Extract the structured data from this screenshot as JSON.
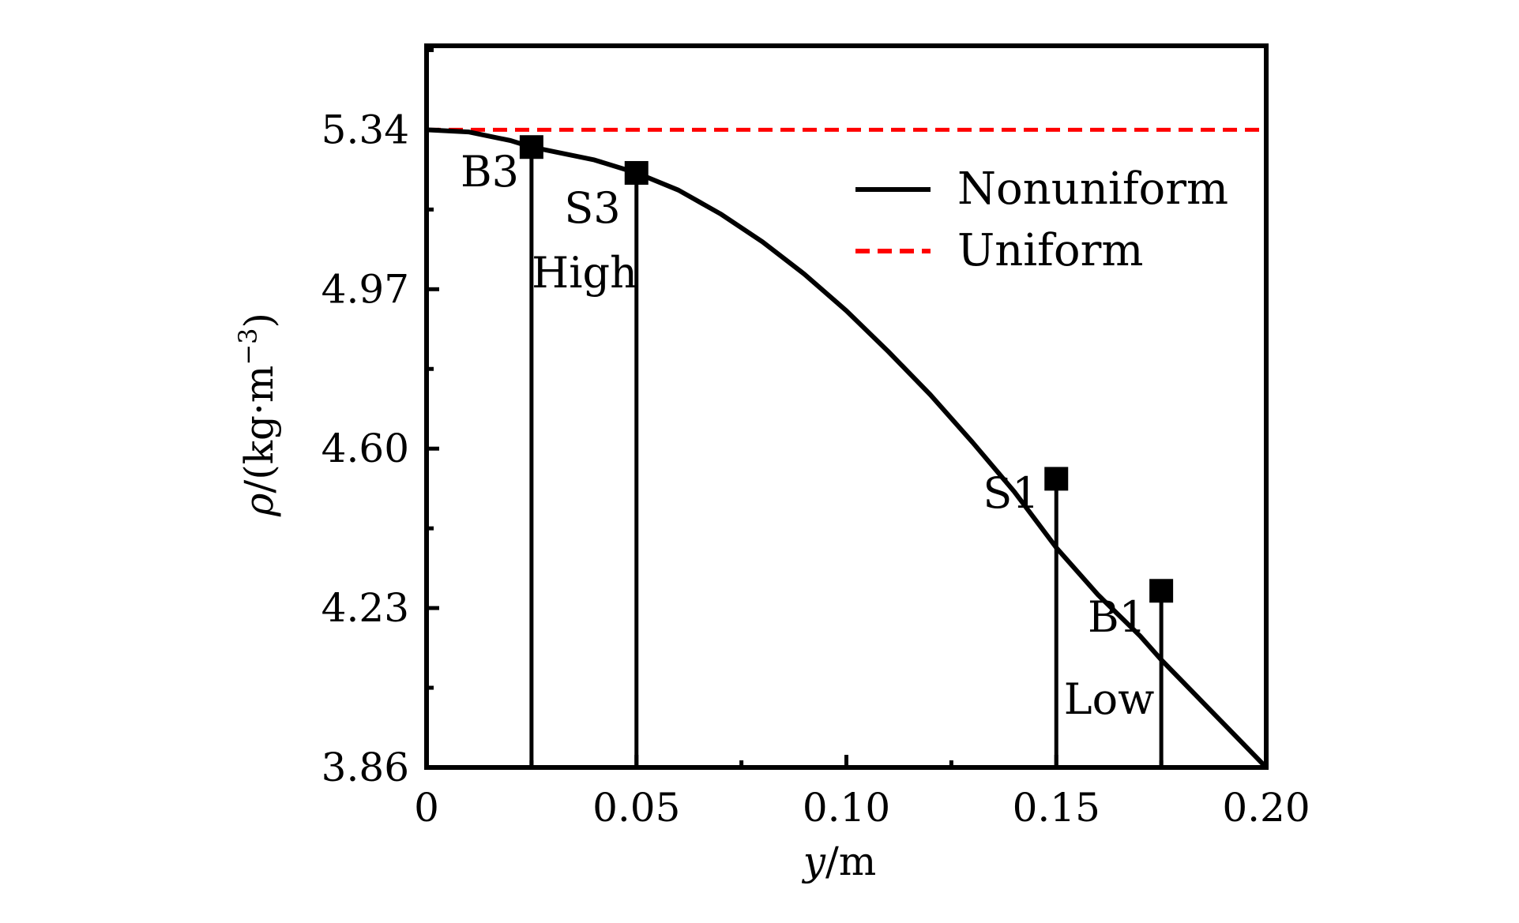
{
  "chart_data": {
    "type": "line",
    "title": "",
    "xlabel": "y/m",
    "xlabel_italic": "y",
    "xlabel_rest": "/m",
    "ylabel": "ρ/(kg·m⁻³)",
    "ylabel_symbol": "ρ",
    "ylabel_unit": "/(kg·m",
    "ylabel_exponent": "−3",
    "ylabel_close": ")",
    "xlim": [
      0,
      0.2
    ],
    "ylim": [
      3.86,
      5.535
    ],
    "xticks": [
      {
        "value": 0,
        "label": "0"
      },
      {
        "value": 0.05,
        "label": "0.05"
      },
      {
        "value": 0.1,
        "label": "0.10"
      },
      {
        "value": 0.15,
        "label": "0.15"
      },
      {
        "value": 0.2,
        "label": "0.20"
      }
    ],
    "yticks": [
      {
        "value": 3.86,
        "label": "3.86"
      },
      {
        "value": 4.23,
        "label": "4.23"
      },
      {
        "value": 4.6,
        "label": "4.60"
      },
      {
        "value": 4.97,
        "label": "4.97"
      },
      {
        "value": 5.34,
        "label": "5.34"
      }
    ],
    "grid": false,
    "legend_position": "top-right",
    "series": [
      {
        "name": "Nonuniform",
        "style": "solid",
        "color": "#000000",
        "x": [
          0,
          0.01,
          0.02,
          0.025,
          0.03,
          0.04,
          0.05,
          0.06,
          0.07,
          0.08,
          0.09,
          0.1,
          0.11,
          0.12,
          0.13,
          0.14,
          0.15,
          0.16,
          0.17,
          0.175,
          0.18,
          0.19,
          0.2
        ],
        "y": [
          5.34,
          5.335,
          5.315,
          5.3,
          5.29,
          5.27,
          5.24,
          5.2,
          5.145,
          5.08,
          5.005,
          4.92,
          4.825,
          4.725,
          4.615,
          4.5,
          4.37,
          4.26,
          4.165,
          4.11,
          4.06,
          3.96,
          3.86
        ]
      },
      {
        "name": "Uniform",
        "style": "dashed",
        "color": "#ff0000",
        "x": [
          0,
          0.2
        ],
        "y": [
          5.34,
          5.34
        ]
      }
    ],
    "markers": [
      {
        "label": "B3",
        "x": 0.025,
        "y": 5.3
      },
      {
        "label": "S3",
        "x": 0.05,
        "y": 5.24
      },
      {
        "label": "S1",
        "x": 0.15,
        "y": 4.53
      },
      {
        "label": "B1",
        "x": 0.175,
        "y": 4.27
      }
    ],
    "region_labels": [
      {
        "label": "High"
      },
      {
        "label": "Low"
      }
    ]
  }
}
